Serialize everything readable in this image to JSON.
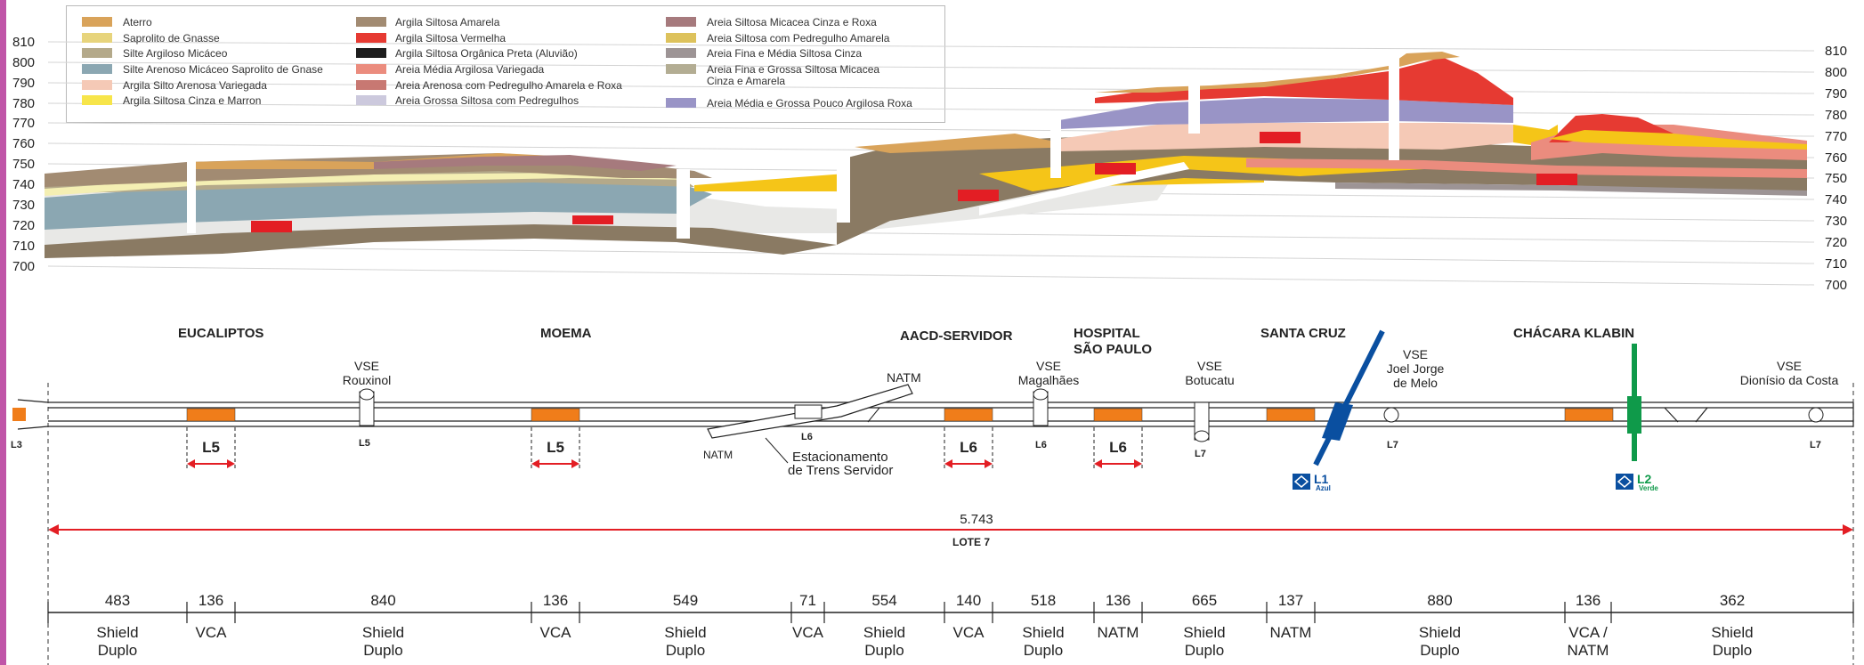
{
  "colors": {
    "aterro": "#d9a35a",
    "saprolito_gnasse": "#e7d47c",
    "silte_argiloso": "#b4a98a",
    "silte_arenoso": "#8ba7b2",
    "argila_silto_arenosa": "#f5c9b6",
    "argila_siltosa_cinza": "#f7e54a",
    "argila_siltosa_amarela": "#a28b72",
    "argila_siltosa_vermelha": "#e63a32",
    "argila_organica": "#1d1d1d",
    "areia_media_argilosa": "#eb8c7e",
    "areia_arenosa_pedregulho": "#c87872",
    "areia_grossa_siltosa": "#ccc9dd",
    "areia_micacea_cinza": "#a67a7d",
    "areia_siltosa_pedregulho": "#ddc25c",
    "areia_fina_media_cinza": "#9d9495",
    "areia_fina_grossa": "#b3ad93",
    "areia_media_grossa_roxa": "#9994c6",
    "brown_layer": "#8a7a63",
    "yellow_layer": "#f5c518",
    "station_red": "#e31e24",
    "tunnel_orange": "#f07d1a",
    "dimension_red": "#e31e24",
    "line1_blue": "#0a4fa0",
    "line2_green": "#0f9a4a"
  },
  "legend": [
    {
      "label": "Aterro",
      "color": "aterro"
    },
    {
      "label": "Saprolito de Gnasse",
      "color": "saprolito_gnasse"
    },
    {
      "label": "Silte Argiloso Micáceo",
      "color": "silte_argiloso"
    },
    {
      "label": "Silte Arenoso Micáceo Saprolito de Gnase",
      "color": "silte_arenoso"
    },
    {
      "label": "Argila Silto Arenosa Variegada",
      "color": "argila_silto_arenosa"
    },
    {
      "label": "Argila Siltosa Cinza e Marron",
      "color": "argila_siltosa_cinza"
    },
    {
      "label": "Argila Siltosa Amarela",
      "color": "argila_siltosa_amarela"
    },
    {
      "label": "Argila Siltosa Vermelha",
      "color": "argila_siltosa_vermelha"
    },
    {
      "label": "Argila Siltosa Orgânica Preta (Aluvião)",
      "color": "argila_organica"
    },
    {
      "label": "Areia Média Argilosa Variegada",
      "color": "areia_media_argilosa"
    },
    {
      "label": "Areia Arenosa com Pedregulho  Amarela e Roxa",
      "color": "areia_arenosa_pedregulho"
    },
    {
      "label": "Areia Grossa Siltosa com Pedregulhos",
      "color": "areia_grossa_siltosa"
    },
    {
      "label": "Areia Siltosa Micacea Cinza e Roxa",
      "color": "areia_micacea_cinza"
    },
    {
      "label": "Areia Siltosa com Pedregulho Amarela",
      "color": "areia_siltosa_pedregulho"
    },
    {
      "label": "Areia Fina e Média Siltosa Cinza",
      "color": "areia_fina_media_cinza"
    },
    {
      "label": "Areia Fina e Grossa Siltosa Micacea",
      "label2": "Cinza e Amarela",
      "color": "areia_fina_grossa"
    },
    {
      "label": "Areia Média e Grossa Pouco Argilosa Roxa",
      "color": "areia_media_grossa_roxa"
    }
  ],
  "elevations": [
    "810",
    "800",
    "790",
    "780",
    "770",
    "760",
    "750",
    "740",
    "730",
    "720",
    "710",
    "700"
  ],
  "stations": [
    {
      "name": "EUCALIPTOS"
    },
    {
      "name": "MOEMA"
    },
    {
      "name": "AACD-SERVIDOR"
    },
    {
      "name": "HOSPITAL",
      "name2": "SÃO PAULO"
    },
    {
      "name": "SANTA CRUZ"
    },
    {
      "name": "CHÁCARA  KLABIN"
    }
  ],
  "vse": [
    {
      "line1": "VSE",
      "line2": "Rouxinol"
    },
    {
      "line1": "VSE",
      "line2": "Magalhães"
    },
    {
      "line1": "VSE",
      "line2": "Botucatu"
    },
    {
      "line1": "VSE",
      "line2": "Joel Jorge",
      "line3": "de Melo"
    },
    {
      "line1": "VSE",
      "line2": "Dionísio da Costa"
    }
  ],
  "lot_labels": [
    "L3",
    "L5",
    "L5",
    "L6",
    "L6",
    "L7",
    "L7",
    "L7"
  ],
  "big_lot_labels": [
    "L5",
    "L5",
    "L6",
    "L6"
  ],
  "natm_top": "NATM",
  "natm_bottom": "NATM",
  "yard_label": "Estacionamento",
  "yard_label2": "de Trens Servidor",
  "metro_lines": [
    {
      "code": "L1",
      "name": "Azul"
    },
    {
      "code": "L2",
      "name": "Verde"
    }
  ],
  "total_length": "5.743",
  "lot_name": "LOTE 7",
  "segments": [
    {
      "length": "483",
      "type": "Shield",
      "type2": "Duplo"
    },
    {
      "length": "136",
      "type": "VCA"
    },
    {
      "length": "840",
      "type": "Shield",
      "type2": "Duplo"
    },
    {
      "length": "136",
      "type": "VCA"
    },
    {
      "length": "549",
      "type": "Shield",
      "type2": "Duplo"
    },
    {
      "length": "71",
      "type": "VCA"
    },
    {
      "length": "554",
      "type": "Shield",
      "type2": "Duplo"
    },
    {
      "length": "140",
      "type": "VCA"
    },
    {
      "length": "518",
      "type": "Shield",
      "type2": "Duplo"
    },
    {
      "length": "136",
      "type": "NATM"
    },
    {
      "length": "665",
      "type": "Shield",
      "type2": "Duplo"
    },
    {
      "length": "137",
      "type": "NATM"
    },
    {
      "length": "880",
      "type": "Shield",
      "type2": "Duplo"
    },
    {
      "length": "136",
      "type": "VCA /",
      "type2": "NATM"
    },
    {
      "length": "362",
      "type": "Shield",
      "type2": "Duplo"
    }
  ]
}
